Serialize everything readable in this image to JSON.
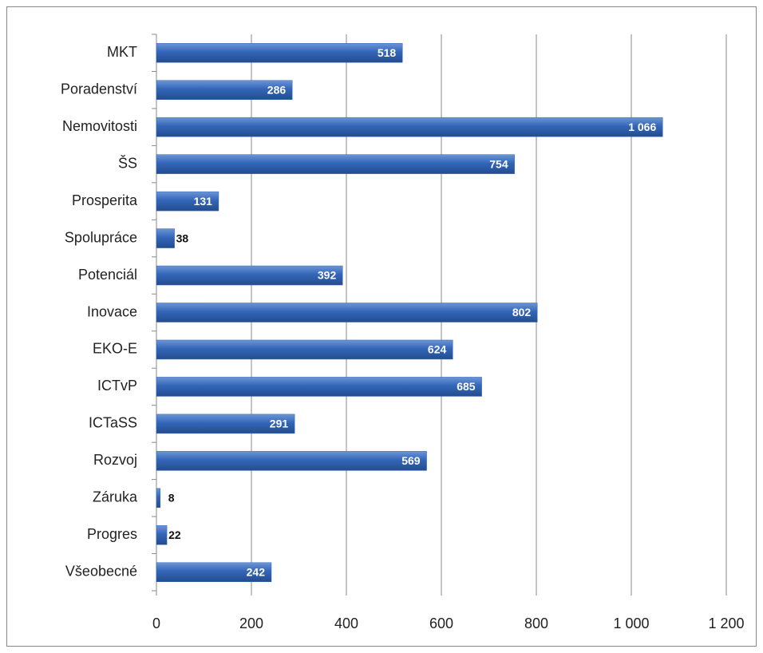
{
  "chart_data": {
    "type": "bar",
    "orientation": "horizontal",
    "categories": [
      "MKT",
      "Poradenství",
      "Nemovitosti",
      "ŠS",
      "Prosperita",
      "Spolupráce",
      "Potenciál",
      "Inovace",
      "EKO-E",
      "ICTvP",
      "ICTaSS",
      "Rozvoj",
      "Záruka",
      "Progres",
      "Všeobecné"
    ],
    "values": [
      518,
      286,
      1066,
      754,
      131,
      38,
      392,
      802,
      624,
      685,
      291,
      569,
      8,
      22,
      242
    ],
    "value_labels": [
      "518",
      "286",
      "1 066",
      "754",
      "131",
      "38",
      "392",
      "802",
      "624",
      "685",
      "291",
      "569",
      "8",
      "22",
      "242"
    ],
    "color": "#3366b8",
    "xlim": [
      0,
      1200
    ],
    "xticks": [
      0,
      200,
      400,
      600,
      800,
      {
        "value": 1000,
        "label": "1 000"
      },
      {
        "value": 1200,
        "label": "1 200"
      }
    ],
    "grid": true
  }
}
